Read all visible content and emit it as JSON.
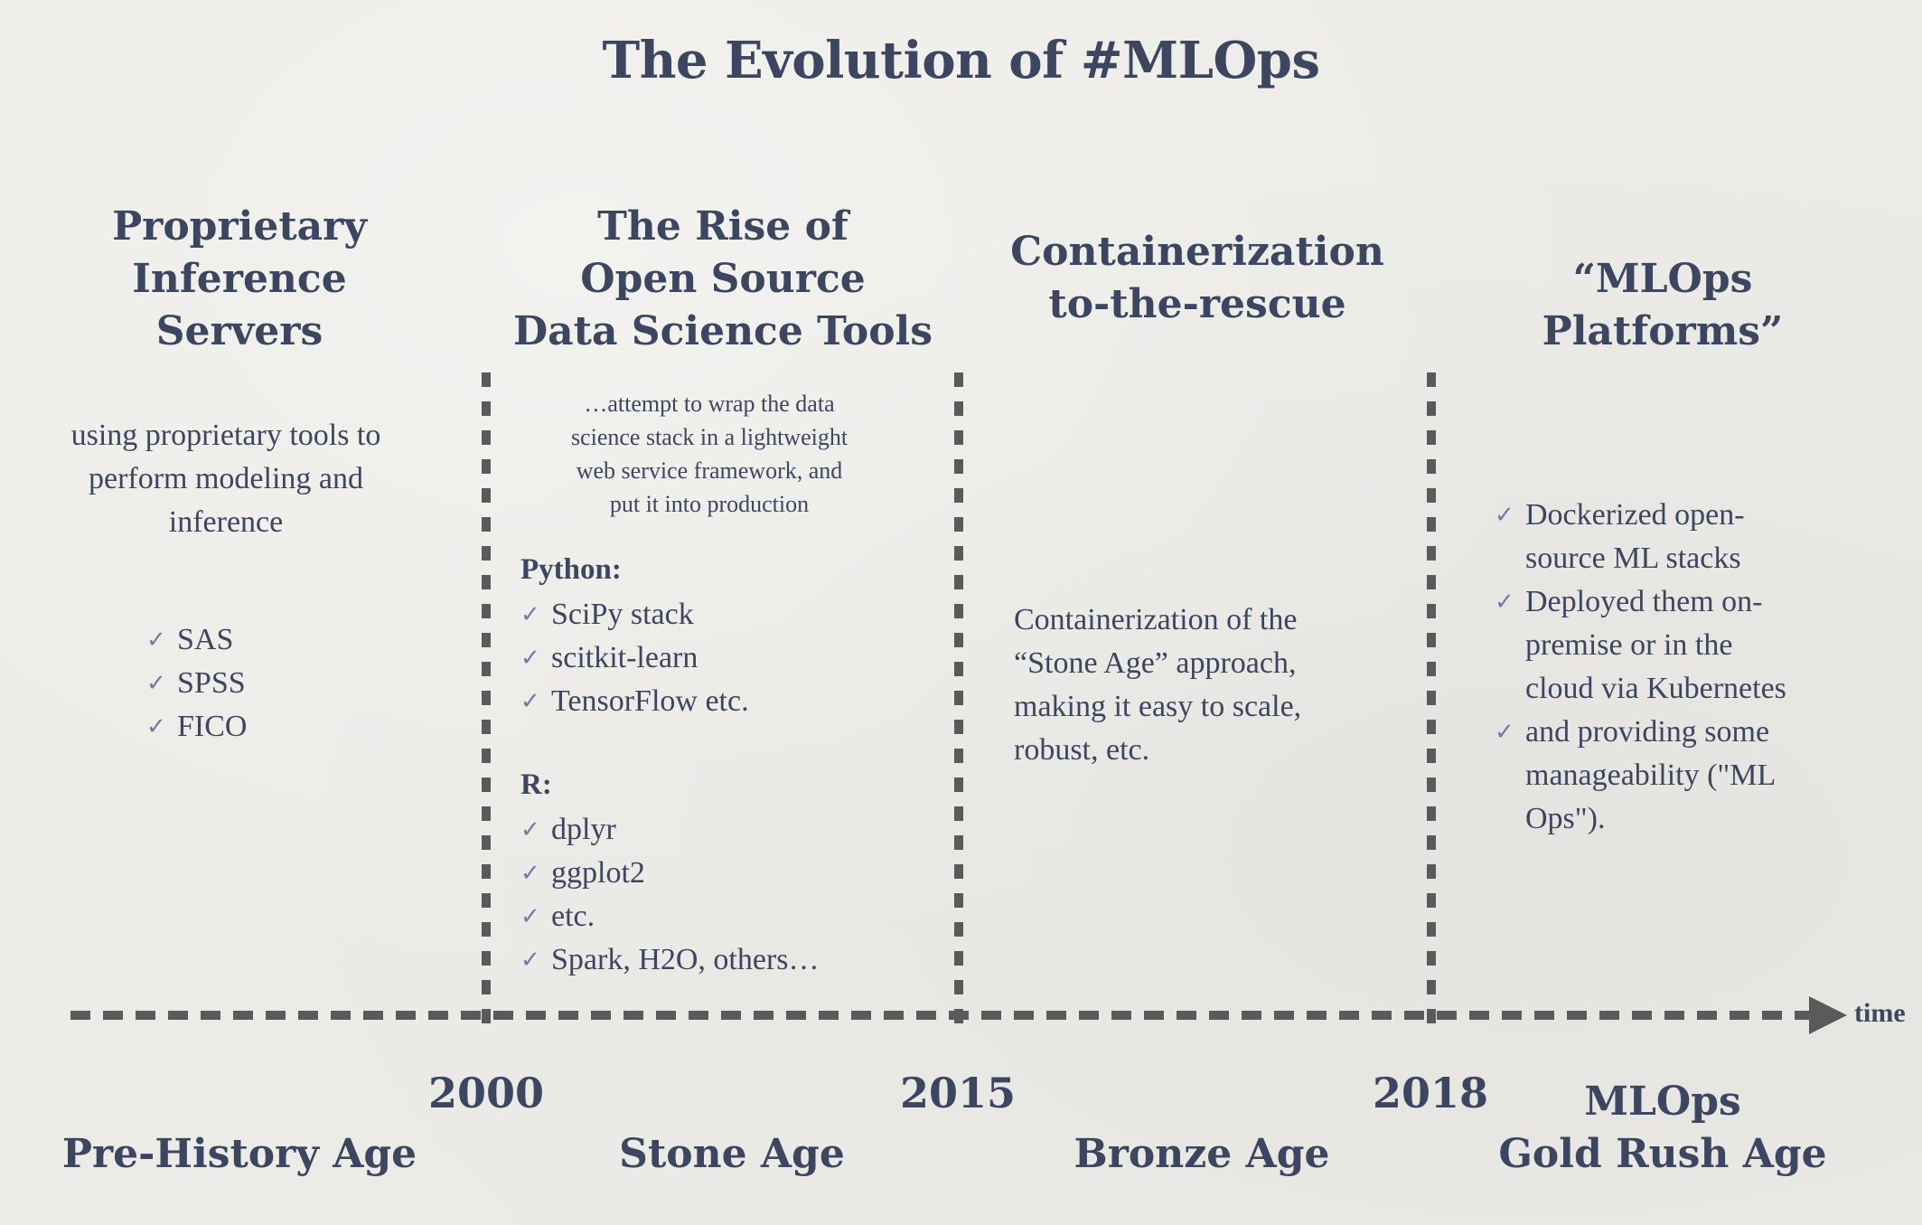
{
  "title": "The Evolution of #MLOps",
  "eras": [
    {
      "heading": "Proprietary\nInference\nServers",
      "description": "using proprietary tools to\nperform modeling and\ninference",
      "items": [
        "SAS",
        "SPSS",
        "FICO"
      ],
      "age": "Pre-History Age"
    },
    {
      "heading": "The Rise of\nOpen Source\nData Science Tools",
      "description": "…attempt to wrap the data\nscience stack in a lightweight\nweb service framework, and\nput it into production",
      "python_label": "Python:",
      "python_items": [
        "SciPy stack",
        "scitkit-learn",
        "TensorFlow etc."
      ],
      "r_label": "R:",
      "r_items": [
        "dplyr",
        "ggplot2",
        "etc.",
        "Spark, H2O, others…"
      ],
      "age": "Stone Age"
    },
    {
      "heading": "Containerization\nto-the-rescue",
      "description": "Containerization of the\n“Stone Age” approach,\nmaking it easy to scale,\nrobust, etc.",
      "age": "Bronze Age"
    },
    {
      "heading": "“MLOps Platforms”",
      "items": [
        "Dockerized open-\nsource ML stacks",
        "Deployed them on-\npremise or in the\ncloud via Kubernetes",
        "and providing some\nmanageability (\"ML\nOps\")."
      ],
      "age": "MLOps\nGold Rush Age"
    }
  ],
  "years": [
    "2000",
    "2015",
    "2018"
  ],
  "axis_label": "time",
  "check_glyph": "✓",
  "colors": {
    "text": "#3c4660",
    "check": "#6f7aa6",
    "line": "#5a5a5a",
    "background": "#ecebe7"
  }
}
